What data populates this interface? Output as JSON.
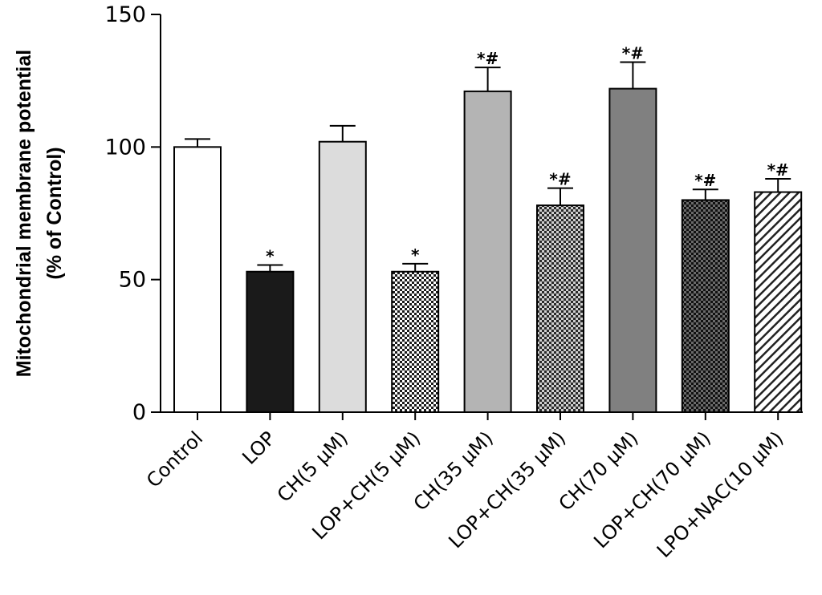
{
  "chart_data": {
    "type": "bar",
    "title": "",
    "xlabel": "",
    "ylabel": "Mitochondrial membrane potential",
    "ylabel_line2": "(% of Control)",
    "ylim": [
      0,
      150
    ],
    "yticks": [
      0,
      50,
      100,
      150
    ],
    "categories": [
      "Control",
      "LOP",
      "CH(5 μM)",
      "LOP+CH(5 μM)",
      "CH(35 μM)",
      "LOP+CH(35 μM)",
      "CH(70 μM)",
      "LOP+CH(70 μM)",
      "LPO+NAC(10 μM)"
    ],
    "values": [
      100,
      53,
      102,
      53,
      121,
      78,
      122,
      80,
      83
    ],
    "errors": [
      3,
      2.5,
      6,
      3,
      9,
      6.5,
      10,
      4,
      5
    ],
    "significance": [
      "",
      "*",
      "",
      "*",
      "*#",
      "*#",
      "*#",
      "*#",
      "*#"
    ],
    "fills": [
      "white",
      "#1a1a1a",
      "#dcdcdc",
      "checker-light",
      "#b4b4b4",
      "checker-medium",
      "#808080",
      "checker-dark",
      "hatch"
    ],
    "grid": false
  }
}
